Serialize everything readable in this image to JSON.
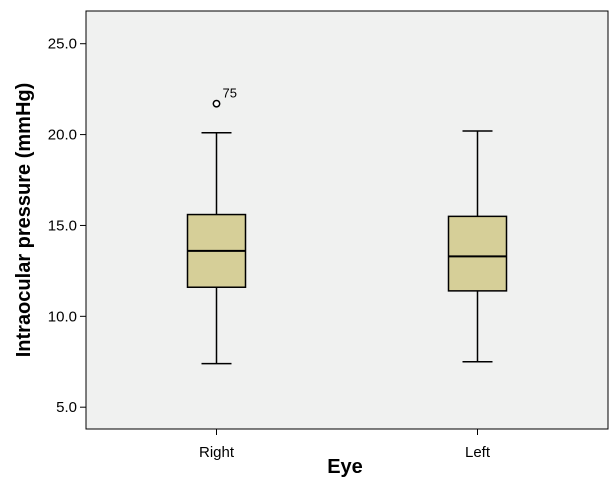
{
  "chart_data": {
    "type": "boxplot",
    "title": "",
    "xlabel": "Eye",
    "ylabel": "Intraocular pressure (mmHg)",
    "ylim": [
      3.8,
      26.8
    ],
    "yticks": [
      5.0,
      10.0,
      15.0,
      20.0,
      25.0
    ],
    "ytick_labels": [
      "5.0",
      "10.0",
      "15.0",
      "20.0",
      "25.0"
    ],
    "grid": false,
    "background": "#f0f1f0",
    "box_color": "#d6cf98",
    "categories": [
      "Right",
      "Left"
    ],
    "boxes": [
      {
        "category": "Right",
        "whisker_low": 7.4,
        "q1": 11.6,
        "median": 13.6,
        "q3": 15.6,
        "whisker_high": 20.1,
        "outliers": [
          {
            "value": 21.7,
            "label": "75"
          }
        ]
      },
      {
        "category": "Left",
        "whisker_low": 7.5,
        "q1": 11.4,
        "median": 13.3,
        "q3": 15.5,
        "whisker_high": 20.2,
        "outliers": []
      }
    ]
  }
}
